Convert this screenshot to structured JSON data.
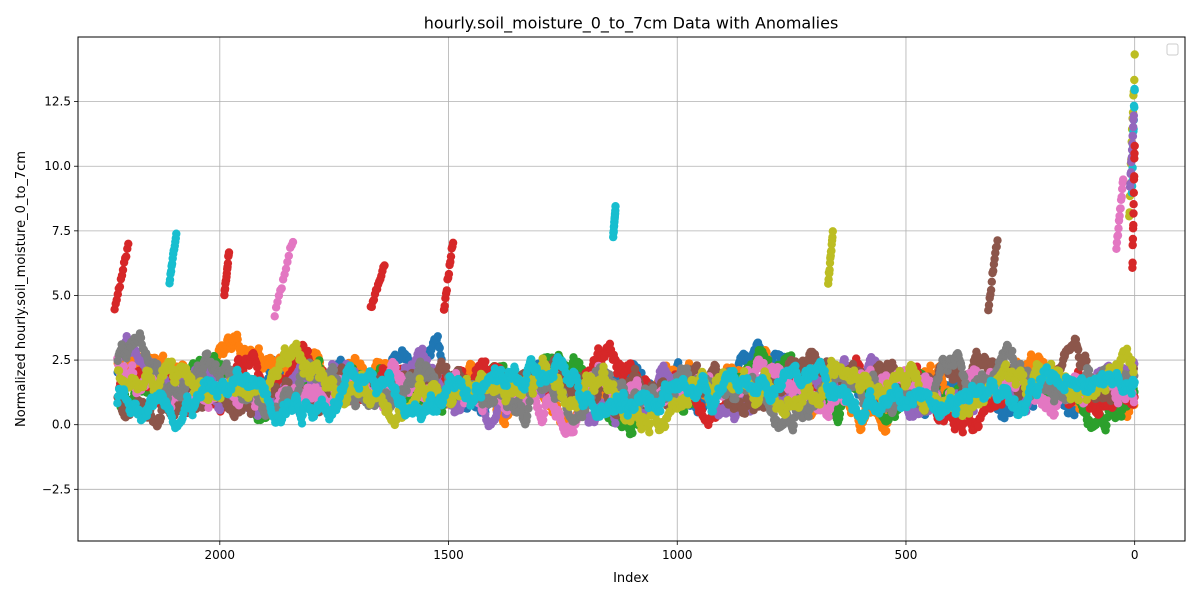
{
  "chart_data": {
    "type": "scatter",
    "title": "hourly.soil_moisture_0_to_7cm Data with Anomalies",
    "xlabel": "Index",
    "ylabel": "Normalized hourly.soil_moisture_0_to_7cm",
    "x_axis_inverted": true,
    "xlim": [
      2310,
      -110
    ],
    "ylim": [
      -4.5,
      15.0
    ],
    "x_ticks": [
      2000,
      1500,
      1000,
      500,
      0
    ],
    "x_tick_labels": [
      "2000",
      "1500",
      "1000",
      "500",
      "0"
    ],
    "y_ticks": [
      -2.5,
      0.0,
      2.5,
      5.0,
      7.5,
      10.0,
      12.5
    ],
    "y_tick_labels": [
      "−2.5",
      "0.0",
      "2.5",
      "5.0",
      "7.5",
      "10.0",
      "12.5"
    ],
    "grid": true,
    "legend_placement": "top-right",
    "legend_entries": [],
    "colors": [
      "#1f77b4",
      "#ff7f0e",
      "#2ca02c",
      "#d62728",
      "#9467bd",
      "#8c564b",
      "#e377c2",
      "#7f7f7f",
      "#bcbd22",
      "#17becf"
    ],
    "n_series": 10,
    "x_range": [
      2225,
      0
    ],
    "base_level": 1.5,
    "band_low": -2.6,
    "band_high": 6.2,
    "highlights": [
      {
        "x_from": 2230,
        "x_to": 2200,
        "y_from": 4.5,
        "y_to": 6.9,
        "color": "#d62728"
      },
      {
        "x_from": 2110,
        "x_to": 2095,
        "y_from": 5.5,
        "y_to": 7.4,
        "color": "#17becf"
      },
      {
        "x_from": 1990,
        "x_to": 1980,
        "y_from": 5.0,
        "y_to": 6.7,
        "color": "#d62728"
      },
      {
        "x_from": 1880,
        "x_to": 1840,
        "y_from": 4.2,
        "y_to": 7.2,
        "color": "#e377c2"
      },
      {
        "x_from": 1670,
        "x_to": 1640,
        "y_from": 4.5,
        "y_to": 6.2,
        "color": "#d62728"
      },
      {
        "x_from": 1510,
        "x_to": 1490,
        "y_from": 4.5,
        "y_to": 7.1,
        "color": "#d62728"
      },
      {
        "x_from": 1140,
        "x_to": 1135,
        "y_from": 7.3,
        "y_to": 8.4,
        "color": "#17becf"
      },
      {
        "x_from": 670,
        "x_to": 660,
        "y_from": 5.5,
        "y_to": 7.4,
        "color": "#bcbd22"
      },
      {
        "x_from": 320,
        "x_to": 300,
        "y_from": 4.5,
        "y_to": 7.2,
        "color": "#8c564b"
      },
      {
        "x_from": 40,
        "x_to": 25,
        "y_from": 6.8,
        "y_to": 9.5,
        "color": "#e377c2"
      },
      {
        "x_from": 12,
        "x_to": 0,
        "y_from": 8.0,
        "y_to": 14.1,
        "color": "#bcbd22"
      },
      {
        "x_from": 6,
        "x_to": 0,
        "y_from": 9.0,
        "y_to": 13.1,
        "color": "#17becf"
      },
      {
        "x_from": 10,
        "x_to": 2,
        "y_from": 9.2,
        "y_to": 11.9,
        "color": "#9467bd"
      },
      {
        "x_from": 5,
        "x_to": 0,
        "y_from": 6.0,
        "y_to": 10.9,
        "color": "#d62728"
      }
    ]
  }
}
